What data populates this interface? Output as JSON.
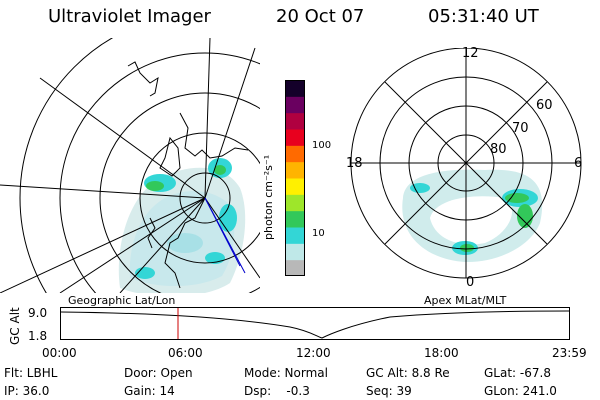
{
  "header": {
    "instrument": "Ultraviolet Imager",
    "date": "20 Oct 07",
    "time": "05:31:40 UT"
  },
  "geo_panel": {
    "caption": "Geographic Lat/Lon"
  },
  "mag_panel": {
    "caption": "Apex MLat/MLT",
    "mlt_labels": [
      "12",
      "18",
      "6",
      "0"
    ],
    "lat_labels": [
      "60",
      "70",
      "80"
    ]
  },
  "colorbar": {
    "label": "photon cm⁻²s⁻¹",
    "ticks": [
      "100",
      "10"
    ],
    "scale": "log",
    "colors": [
      "#b8b8b8",
      "#bfe8e8",
      "#33d6d6",
      "#32c85a",
      "#9ee62a",
      "#fff000",
      "#ffb400",
      "#ff6a00",
      "#e8001e",
      "#b00040",
      "#6a0060",
      "#14002a"
    ]
  },
  "altitude_plot": {
    "ylabel": "GC Alt",
    "yticks": [
      "9.0",
      "1.8"
    ],
    "xticks": [
      "00:00",
      "06:00",
      "12:00",
      "18:00",
      "23:59"
    ],
    "marker_time": "05:31:40",
    "marker_color": "#cc0000"
  },
  "info": {
    "flt": "Flt: LBHL",
    "door": "Door: Open",
    "mode": "Mode: Normal",
    "gcalt": "GC Alt: 8.8 Re",
    "glat": "GLat: -67.8",
    "ip": "IP: 36.0",
    "gain": "Gain: 14",
    "dsp": "Dsp:    -0.3",
    "seq": "Seq: 39",
    "glon": "GLon: 241.0"
  }
}
